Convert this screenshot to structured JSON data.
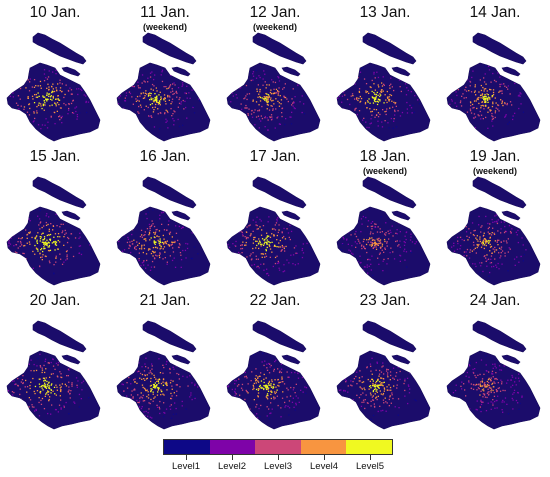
{
  "panels": [
    {
      "date": "10 Jan.",
      "note": "",
      "intensity": 0.85
    },
    {
      "date": "11 Jan.",
      "note": "(weekend)",
      "intensity": 0.75
    },
    {
      "date": "12 Jan.",
      "note": "(weekend)",
      "intensity": 0.7
    },
    {
      "date": "13 Jan.",
      "note": "",
      "intensity": 0.8
    },
    {
      "date": "14 Jan.",
      "note": "",
      "intensity": 0.75
    },
    {
      "date": "15 Jan.",
      "note": "",
      "intensity": 0.9
    },
    {
      "date": "16 Jan.",
      "note": "",
      "intensity": 0.75
    },
    {
      "date": "17 Jan.",
      "note": "",
      "intensity": 0.8
    },
    {
      "date": "18 Jan.",
      "note": "(weekend)",
      "intensity": 0.55
    },
    {
      "date": "19 Jan.",
      "note": "(weekend)",
      "intensity": 0.65
    },
    {
      "date": "20 Jan.",
      "note": "",
      "intensity": 0.85
    },
    {
      "date": "21 Jan.",
      "note": "",
      "intensity": 0.8
    },
    {
      "date": "22 Jan.",
      "note": "",
      "intensity": 0.8
    },
    {
      "date": "23 Jan.",
      "note": "",
      "intensity": 0.75
    },
    {
      "date": "24 Jan.",
      "note": "",
      "intensity": 0.55
    }
  ],
  "legend": {
    "levels": [
      "Level1",
      "Level2",
      "Level3",
      "Level4",
      "Level5"
    ],
    "colors": [
      "#0d0887",
      "#7e03a8",
      "#cc4778",
      "#f89540",
      "#f0f921"
    ]
  },
  "colors": {
    "base_fill": "#1b0c6b",
    "land_edge": "#15085a"
  }
}
